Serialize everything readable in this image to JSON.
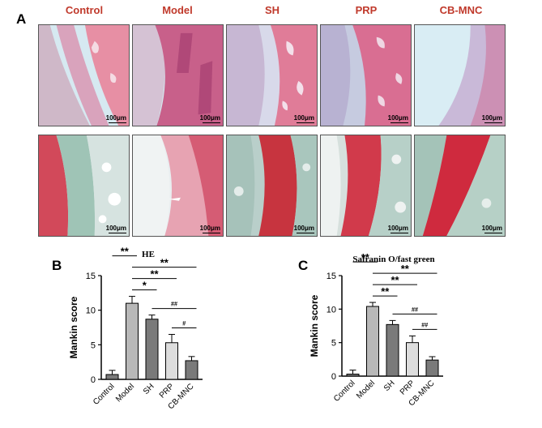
{
  "panel_labels": {
    "a": "A",
    "b": "B",
    "c": "C"
  },
  "columns": [
    "Control",
    "Model",
    "SH",
    "PRP",
    "CB-MNC"
  ],
  "scale_text": "100μm",
  "colors": {
    "column_label": "#c0392b",
    "he_background": "#d9ecf3",
    "he_tissue": "#d98aa8",
    "safranin_background": "#c9dcd4",
    "safranin_cartilage": "#cf2a3e",
    "bars": [
      "#7a7a7a",
      "#b8b8b8",
      "#7a7a7a",
      "#dddddd",
      "#7a7a7a"
    ]
  },
  "chart_data": [
    {
      "type": "bar",
      "title": "HE",
      "ylabel": "Mankin score",
      "xlabel": "",
      "categories": [
        "Control",
        "Model",
        "SH",
        "PRP",
        "CB-MNC"
      ],
      "values": [
        0.7,
        11.0,
        8.7,
        5.3,
        2.7
      ],
      "errors": [
        0.6,
        1.0,
        0.6,
        1.2,
        0.6
      ],
      "ylim": [
        0,
        15
      ],
      "yticks": [
        "0",
        "5",
        "10",
        "15"
      ],
      "significance": [
        {
          "from": 0,
          "to": 1,
          "label": "**"
        },
        {
          "from": 1,
          "to": 2,
          "label": "*"
        },
        {
          "from": 1,
          "to": 3,
          "label": "**"
        },
        {
          "from": 1,
          "to": 4,
          "label": "**"
        },
        {
          "from": 2,
          "to": 4,
          "label": "##"
        },
        {
          "from": 3,
          "to": 4,
          "label": "#"
        }
      ]
    },
    {
      "type": "bar",
      "title": "Safranin O/fast green",
      "ylabel": "Mankin score",
      "xlabel": "",
      "categories": [
        "Control",
        "Model",
        "SH",
        "PRP",
        "CB-MNC"
      ],
      "values": [
        0.3,
        10.4,
        7.7,
        5.0,
        2.4
      ],
      "errors": [
        0.6,
        0.6,
        0.6,
        1.0,
        0.5
      ],
      "ylim": [
        0,
        15
      ],
      "yticks": [
        "0",
        "5",
        "10",
        "15"
      ],
      "significance": [
        {
          "from": 0,
          "to": 1,
          "label": "**"
        },
        {
          "from": 1,
          "to": 2,
          "label": "**"
        },
        {
          "from": 1,
          "to": 3,
          "label": "**"
        },
        {
          "from": 1,
          "to": 4,
          "label": "**"
        },
        {
          "from": 2,
          "to": 4,
          "label": "##"
        },
        {
          "from": 3,
          "to": 4,
          "label": "##"
        }
      ]
    }
  ]
}
